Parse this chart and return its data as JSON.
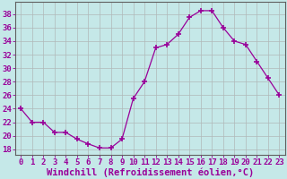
{
  "x": [
    0,
    1,
    2,
    3,
    4,
    5,
    6,
    7,
    8,
    9,
    10,
    11,
    12,
    13,
    14,
    15,
    16,
    17,
    18,
    19,
    20,
    21,
    22,
    23
  ],
  "y": [
    24,
    22,
    22,
    20.5,
    20.5,
    19.5,
    18.8,
    18.2,
    18.2,
    19.5,
    25.5,
    28,
    33,
    33.5,
    35,
    37.5,
    38.5,
    38.5,
    36,
    34,
    33.5,
    31,
    28.5,
    26
  ],
  "line_color": "#990099",
  "marker": "+",
  "marker_size": 4,
  "background_color": "#c5e8e8",
  "grid_color": "#b0b8b8",
  "xlabel": "Windchill (Refroidissement éolien,°C)",
  "xlabel_fontsize": 7.5,
  "ylabel_ticks": [
    18,
    20,
    22,
    24,
    26,
    28,
    30,
    32,
    34,
    36,
    38
  ],
  "ylim": [
    17.2,
    39.8
  ],
  "xlim": [
    -0.5,
    23.5
  ],
  "tick_fontsize": 6.5,
  "figwidth": 3.2,
  "figheight": 2.0,
  "dpi": 100
}
